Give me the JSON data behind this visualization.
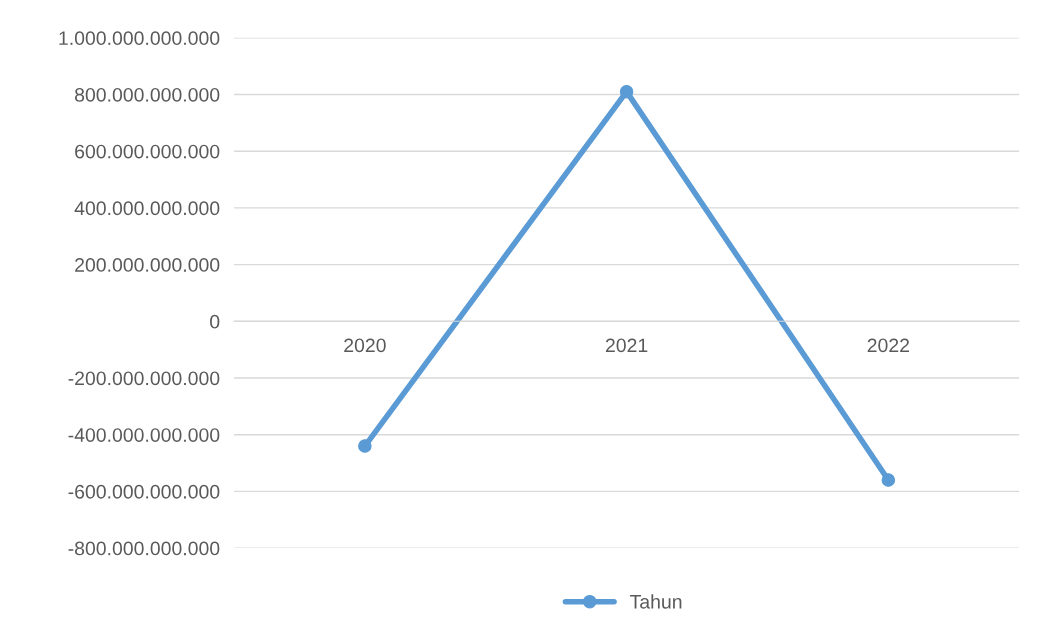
{
  "chart_data": {
    "type": "line",
    "categories": [
      "2020",
      "2021",
      "2022"
    ],
    "series": [
      {
        "name": "Tahun",
        "color": "#5b9bd5",
        "values": [
          -440000000000,
          810000000000,
          -560000000000
        ]
      }
    ],
    "ylim": [
      -800000000000,
      1000000000000
    ],
    "yticks": [
      {
        "value": -800000000000,
        "label": "-800.000.000.000"
      },
      {
        "value": -600000000000,
        "label": "-600.000.000.000"
      },
      {
        "value": -400000000000,
        "label": "-400.000.000.000"
      },
      {
        "value": -200000000000,
        "label": "-200.000.000.000"
      },
      0,
      {
        "value": 200000000000,
        "label": "200.000.000.000"
      },
      {
        "value": 400000000000,
        "label": "400.000.000.000"
      },
      {
        "value": 600000000000,
        "label": "600.000.000.000"
      },
      {
        "value": 800000000000,
        "label": "800.000.000.000"
      },
      {
        "value": 1000000000000,
        "label": "1.000.000.000.000"
      }
    ],
    "grid": "y",
    "legend": "bottom",
    "marker": "circle",
    "line_style": "solid"
  }
}
